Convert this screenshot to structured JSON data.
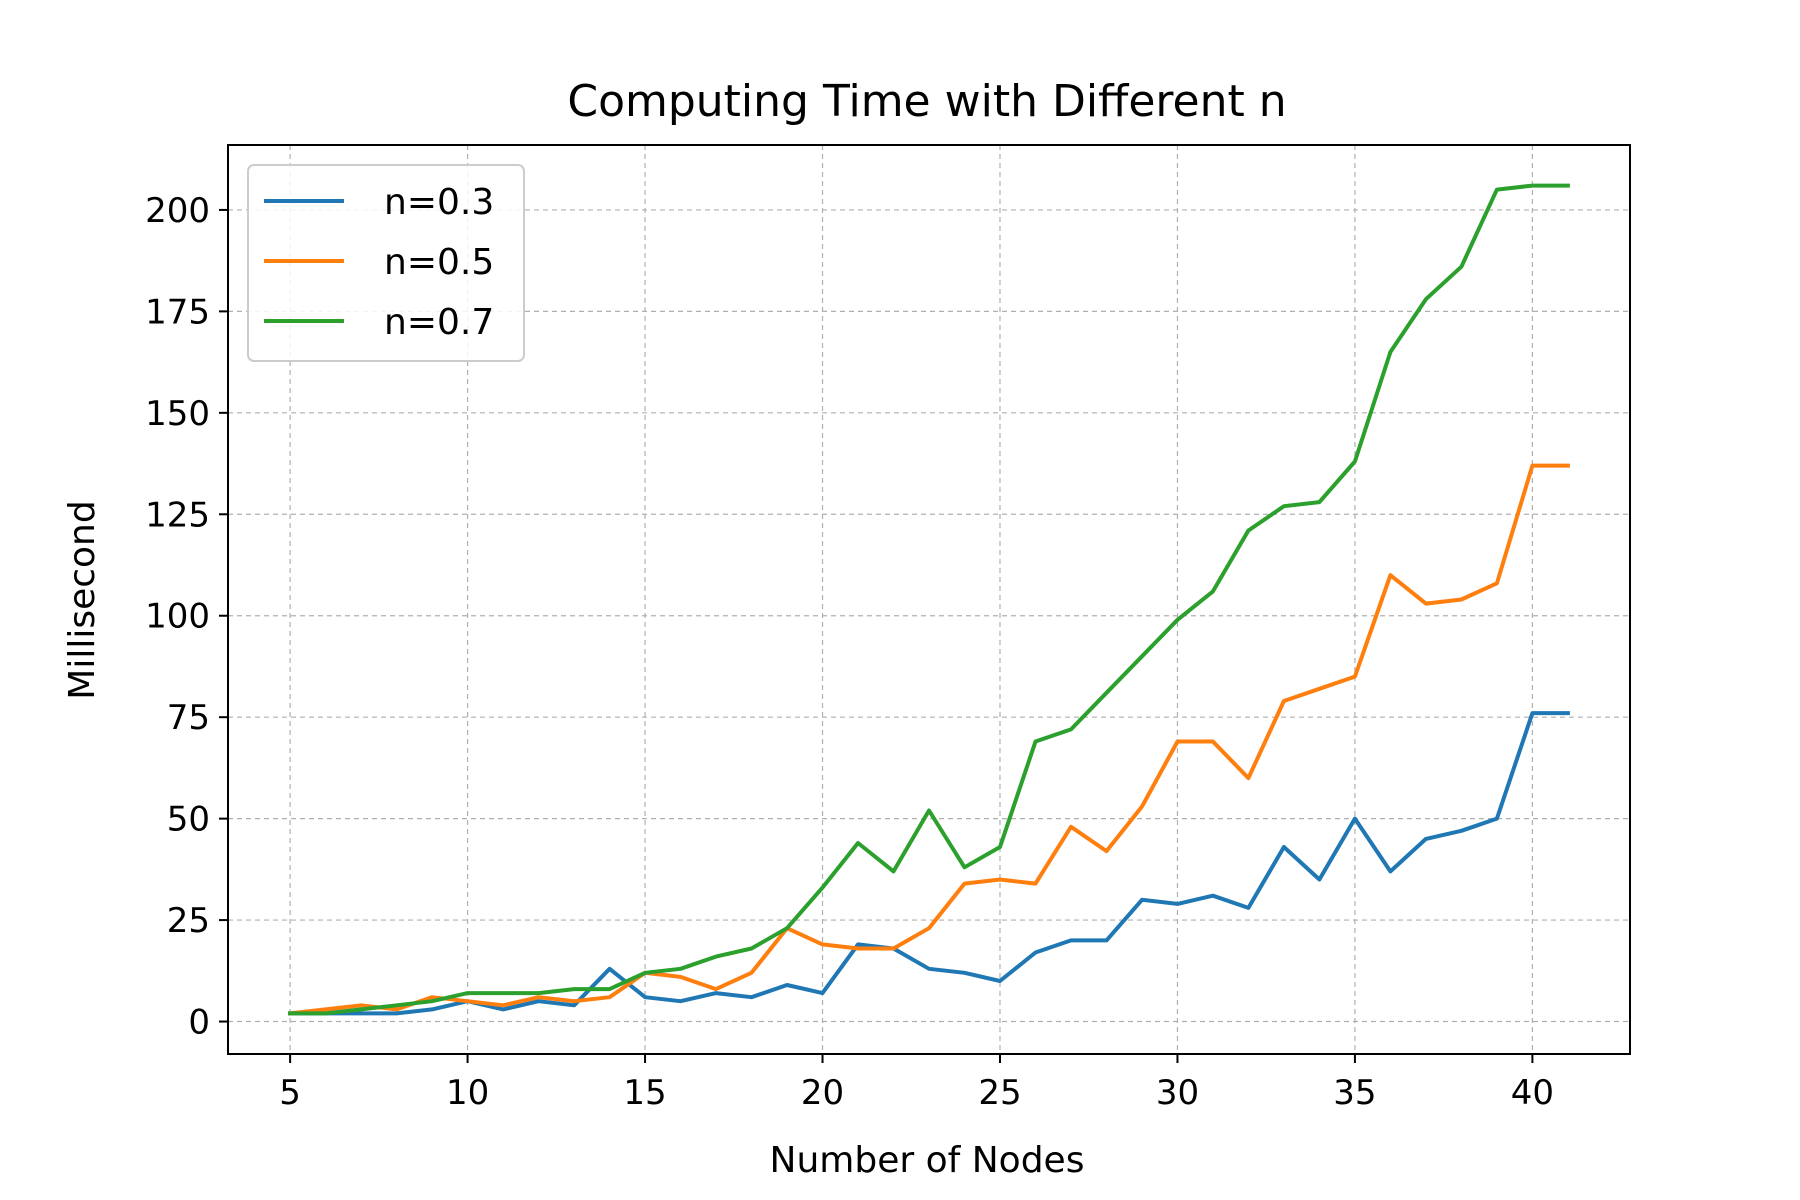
{
  "chart_data": {
    "type": "line",
    "title": "Computing Time with Different n",
    "xlabel": "Number of Nodes",
    "ylabel": "Millisecond",
    "xlim": [
      3.25,
      42.75
    ],
    "ylim": [
      -8,
      216
    ],
    "xticks": [
      5,
      10,
      15,
      20,
      25,
      30,
      35,
      40
    ],
    "yticks": [
      0,
      25,
      50,
      75,
      100,
      125,
      150,
      175,
      200
    ],
    "grid": true,
    "legend_position": "top-left",
    "x": [
      5,
      6,
      7,
      8,
      9,
      10,
      11,
      12,
      13,
      14,
      15,
      16,
      17,
      18,
      19,
      20,
      21,
      22,
      23,
      24,
      25,
      26,
      27,
      28,
      29,
      30,
      31,
      32,
      33,
      34,
      35,
      36,
      37,
      38,
      39,
      40,
      41
    ],
    "series": [
      {
        "name": "n=0.3",
        "color": "#1f77b4",
        "values": [
          2,
          2,
          2,
          2,
          3,
          5,
          3,
          5,
          4,
          13,
          6,
          5,
          7,
          6,
          9,
          7,
          19,
          18,
          13,
          12,
          10,
          17,
          20,
          20,
          30,
          29,
          31,
          28,
          43,
          35,
          50,
          37,
          45,
          47,
          50,
          76,
          76
        ]
      },
      {
        "name": "n=0.5",
        "color": "#ff7f0e",
        "values": [
          2,
          3,
          4,
          3,
          6,
          5,
          4,
          6,
          5,
          6,
          12,
          11,
          8,
          12,
          23,
          19,
          18,
          18,
          23,
          34,
          35,
          34,
          48,
          42,
          53,
          69,
          69,
          60,
          79,
          82,
          85,
          110,
          103,
          104,
          108,
          137,
          137
        ]
      },
      {
        "name": "n=0.7",
        "color": "#2ca02c",
        "values": [
          2,
          2,
          3,
          4,
          5,
          7,
          7,
          7,
          8,
          8,
          12,
          13,
          16,
          18,
          23,
          33,
          44,
          37,
          52,
          38,
          43,
          69,
          72,
          81,
          90,
          99,
          106,
          121,
          127,
          128,
          138,
          165,
          178,
          186,
          205,
          206,
          206
        ]
      }
    ]
  }
}
